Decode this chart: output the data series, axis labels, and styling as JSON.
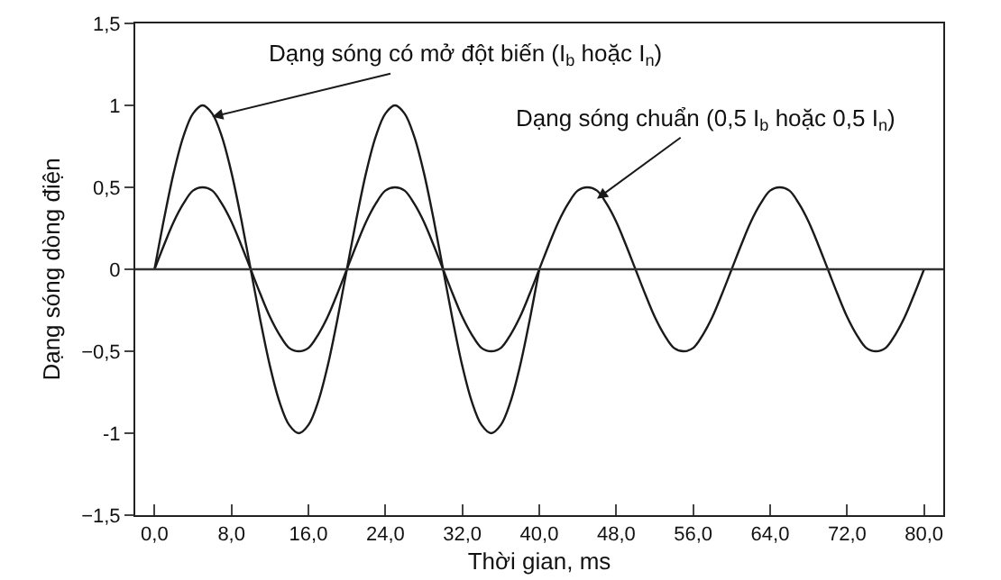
{
  "chart_data": {
    "type": "line",
    "xlabel": "Thời gian, ms",
    "ylabel": "Dạng sóng dòng điện",
    "series": [
      {
        "color": "#1a1a1a",
        "x": [
          0,
          1,
          2,
          3,
          4,
          5,
          6,
          7,
          8,
          9,
          10,
          11,
          12,
          13,
          14,
          15,
          16,
          17,
          18,
          19,
          20,
          21,
          22,
          23,
          24,
          25,
          26,
          27,
          28,
          29,
          30,
          31,
          32,
          33,
          34,
          35,
          36,
          37,
          38,
          39,
          40
        ],
        "values": [
          0,
          0.31,
          0.59,
          0.81,
          0.95,
          1,
          0.95,
          0.81,
          0.59,
          0.31,
          0,
          -0.31,
          -0.59,
          -0.81,
          -0.95,
          -1,
          -0.95,
          -0.81,
          -0.59,
          -0.31,
          0,
          0.31,
          0.59,
          0.81,
          0.95,
          1,
          0.95,
          0.81,
          0.59,
          0.31,
          0,
          -0.31,
          -0.59,
          -0.81,
          -0.95,
          -1,
          -0.95,
          -0.81,
          -0.59,
          -0.31,
          0
        ]
      },
      {
        "color": "#1a1a1a",
        "x": [
          0,
          1,
          2,
          3,
          4,
          5,
          6,
          7,
          8,
          9,
          10,
          11,
          12,
          13,
          14,
          15,
          16,
          17,
          18,
          19,
          20,
          21,
          22,
          23,
          24,
          25,
          26,
          27,
          28,
          29,
          30,
          31,
          32,
          33,
          34,
          35,
          36,
          37,
          38,
          39,
          40,
          41,
          42,
          43,
          44,
          45,
          46,
          47,
          48,
          49,
          50,
          51,
          52,
          53,
          54,
          55,
          56,
          57,
          58,
          59,
          60,
          61,
          62,
          63,
          64,
          65,
          66,
          67,
          68,
          69,
          70,
          71,
          72,
          73,
          74,
          75,
          76,
          77,
          78,
          79,
          80
        ],
        "values": [
          0,
          0.15,
          0.29,
          0.4,
          0.48,
          0.5,
          0.48,
          0.4,
          0.29,
          0.15,
          0,
          -0.15,
          -0.29,
          -0.4,
          -0.48,
          -0.5,
          -0.48,
          -0.4,
          -0.29,
          -0.15,
          0,
          0.15,
          0.29,
          0.4,
          0.48,
          0.5,
          0.48,
          0.4,
          0.29,
          0.15,
          0,
          -0.15,
          -0.29,
          -0.4,
          -0.48,
          -0.5,
          -0.48,
          -0.4,
          -0.29,
          -0.15,
          0,
          0.15,
          0.29,
          0.4,
          0.48,
          0.5,
          0.48,
          0.4,
          0.29,
          0.15,
          0,
          -0.15,
          -0.29,
          -0.4,
          -0.48,
          -0.5,
          -0.48,
          -0.4,
          -0.29,
          -0.15,
          0,
          0.15,
          0.29,
          0.4,
          0.48,
          0.5,
          0.48,
          0.4,
          0.29,
          0.15,
          0,
          -0.15,
          -0.29,
          -0.4,
          -0.48,
          -0.5,
          -0.48,
          -0.4,
          -0.29,
          -0.15,
          0
        ]
      }
    ],
    "xlim": [
      -2,
      82
    ],
    "xticks": [
      {
        "value": 0,
        "label": "0,0"
      },
      {
        "value": 8,
        "label": "8,0"
      },
      {
        "value": 16,
        "label": "16,0"
      },
      {
        "value": 24,
        "label": "24,0"
      },
      {
        "value": 32,
        "label": "32,0"
      },
      {
        "value": 40,
        "label": "40,0"
      },
      {
        "value": 48,
        "label": "48,0"
      },
      {
        "value": 56,
        "label": "56,0"
      },
      {
        "value": 64,
        "label": "64,0"
      },
      {
        "value": 72,
        "label": "72,0"
      },
      {
        "value": 80,
        "label": "80,0"
      }
    ],
    "ylim": [
      -1.5,
      1.5
    ],
    "yticks": [
      {
        "value": 1.5,
        "label": "1,5"
      },
      1,
      {
        "value": 0.5,
        "label": "0,5"
      },
      0,
      {
        "value": -0.5,
        "label": "−0,5"
      },
      -1,
      {
        "value": -1.5,
        "label": "−1,5"
      }
    ],
    "ref_lines": [
      {
        "axis": "y",
        "value": 0,
        "color": "#333333"
      }
    ],
    "annotations": [
      {
        "text": "Dạng sóng có mở đột biến (I$_{b}$ hoặc I$_{n}$)",
        "x": 6,
        "y": 0.93
      },
      {
        "text": "Dạng sóng chuẩn (0,5 I$_{b}$ hoặc 0,5 I$_{n}$)",
        "x": 46,
        "y": 0.43
      }
    ],
    "grid": false,
    "marker": "none",
    "line_style": "solid"
  }
}
